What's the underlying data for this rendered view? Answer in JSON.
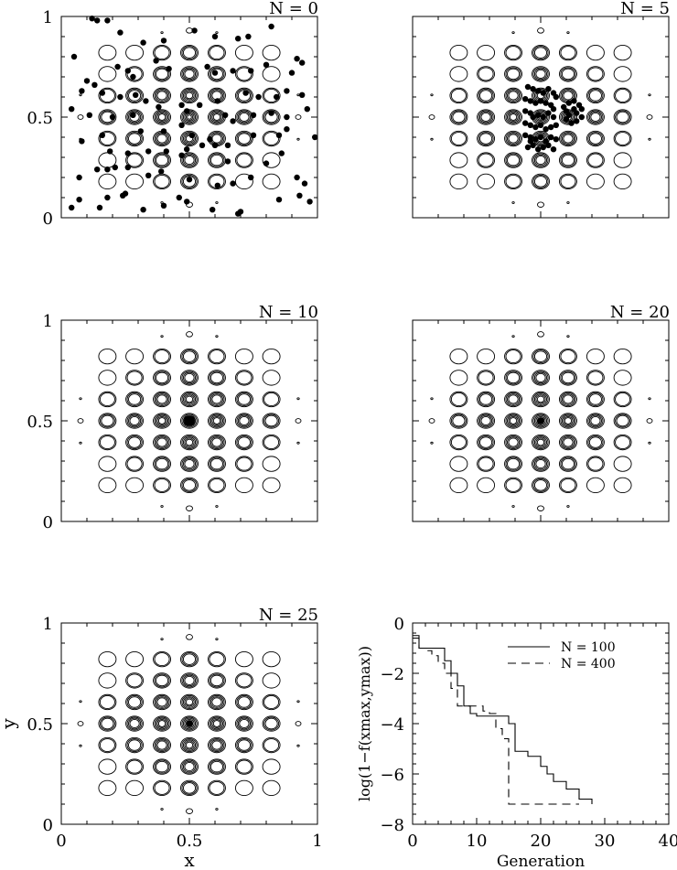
{
  "figure": {
    "panels_label": "N",
    "x_axis_label": "x",
    "y_axis_label": "y"
  },
  "chart_data": [
    {
      "type": "scatter",
      "title": "N = 0",
      "xlim": [
        0,
        1
      ],
      "ylim": [
        0,
        1
      ],
      "yticks": [
        "0",
        "0.5",
        "1"
      ],
      "xticks": [],
      "background": "contour of multimodal test function (7x7 grid of peaks)",
      "points": [
        [
          0.12,
          0.99
        ],
        [
          0.14,
          0.98
        ],
        [
          0.18,
          0.98
        ],
        [
          0.05,
          0.8
        ],
        [
          0.23,
          0.92
        ],
        [
          0.32,
          0.87
        ],
        [
          0.4,
          0.88
        ],
        [
          0.52,
          0.93
        ],
        [
          0.6,
          0.9
        ],
        [
          0.69,
          0.89
        ],
        [
          0.73,
          0.9
        ],
        [
          0.82,
          0.95
        ],
        [
          0.92,
          0.79
        ],
        [
          0.94,
          0.77
        ],
        [
          0.1,
          0.68
        ],
        [
          0.13,
          0.66
        ],
        [
          0.22,
          0.75
        ],
        [
          0.26,
          0.73
        ],
        [
          0.28,
          0.7
        ],
        [
          0.37,
          0.78
        ],
        [
          0.42,
          0.74
        ],
        [
          0.57,
          0.75
        ],
        [
          0.6,
          0.72
        ],
        [
          0.67,
          0.73
        ],
        [
          0.74,
          0.73
        ],
        [
          0.8,
          0.76
        ],
        [
          0.9,
          0.72
        ],
        [
          0.08,
          0.63
        ],
        [
          0.16,
          0.62
        ],
        [
          0.23,
          0.6
        ],
        [
          0.29,
          0.61
        ],
        [
          0.33,
          0.58
        ],
        [
          0.38,
          0.55
        ],
        [
          0.47,
          0.56
        ],
        [
          0.54,
          0.56
        ],
        [
          0.61,
          0.58
        ],
        [
          0.72,
          0.62
        ],
        [
          0.77,
          0.6
        ],
        [
          0.84,
          0.6
        ],
        [
          0.88,
          0.63
        ],
        [
          0.94,
          0.61
        ],
        [
          0.04,
          0.54
        ],
        [
          0.11,
          0.51
        ],
        [
          0.2,
          0.5
        ],
        [
          0.28,
          0.51
        ],
        [
          0.49,
          0.53
        ],
        [
          0.64,
          0.51
        ],
        [
          0.67,
          0.48
        ],
        [
          0.75,
          0.51
        ],
        [
          0.82,
          0.52
        ],
        [
          0.88,
          0.5
        ],
        [
          0.96,
          0.54
        ],
        [
          0.08,
          0.38
        ],
        [
          0.16,
          0.41
        ],
        [
          0.31,
          0.43
        ],
        [
          0.4,
          0.43
        ],
        [
          0.47,
          0.46
        ],
        [
          0.51,
          0.41
        ],
        [
          0.58,
          0.39
        ],
        [
          0.6,
          0.36
        ],
        [
          0.65,
          0.36
        ],
        [
          0.75,
          0.41
        ],
        [
          0.85,
          0.41
        ],
        [
          0.88,
          0.44
        ],
        [
          0.99,
          0.4
        ],
        [
          0.19,
          0.33
        ],
        [
          0.26,
          0.32
        ],
        [
          0.34,
          0.33
        ],
        [
          0.41,
          0.33
        ],
        [
          0.47,
          0.31
        ],
        [
          0.49,
          0.34
        ],
        [
          0.55,
          0.36
        ],
        [
          0.65,
          0.28
        ],
        [
          0.8,
          0.27
        ],
        [
          0.86,
          0.32
        ],
        [
          0.07,
          0.2
        ],
        [
          0.14,
          0.24
        ],
        [
          0.18,
          0.24
        ],
        [
          0.21,
          0.25
        ],
        [
          0.26,
          0.25
        ],
        [
          0.34,
          0.21
        ],
        [
          0.39,
          0.23
        ],
        [
          0.5,
          0.19
        ],
        [
          0.61,
          0.16
        ],
        [
          0.67,
          0.17
        ],
        [
          0.74,
          0.2
        ],
        [
          0.92,
          0.2
        ],
        [
          0.95,
          0.17
        ],
        [
          0.04,
          0.05
        ],
        [
          0.07,
          0.09
        ],
        [
          0.15,
          0.05
        ],
        [
          0.18,
          0.1
        ],
        [
          0.24,
          0.11
        ],
        [
          0.25,
          0.12
        ],
        [
          0.32,
          0.04
        ],
        [
          0.4,
          0.06
        ],
        [
          0.46,
          0.1
        ],
        [
          0.49,
          0.08
        ],
        [
          0.59,
          0.04
        ],
        [
          0.69,
          0.02
        ],
        [
          0.7,
          0.03
        ],
        [
          0.85,
          0.09
        ],
        [
          0.93,
          0.11
        ],
        [
          0.97,
          0.08
        ]
      ]
    },
    {
      "type": "scatter",
      "title": "N = 5",
      "xlim": [
        0,
        1
      ],
      "ylim": [
        0,
        1
      ],
      "xticks": [],
      "yticks": [],
      "background": "contour of multimodal test function (7x7 grid of peaks)",
      "points": [
        [
          0.45,
          0.65
        ],
        [
          0.47,
          0.64
        ],
        [
          0.49,
          0.63
        ],
        [
          0.51,
          0.62
        ],
        [
          0.53,
          0.64
        ],
        [
          0.55,
          0.62
        ],
        [
          0.56,
          0.6
        ],
        [
          0.44,
          0.59
        ],
        [
          0.46,
          0.58
        ],
        [
          0.48,
          0.57
        ],
        [
          0.5,
          0.58
        ],
        [
          0.52,
          0.57
        ],
        [
          0.54,
          0.56
        ],
        [
          0.55,
          0.54
        ],
        [
          0.44,
          0.53
        ],
        [
          0.46,
          0.52
        ],
        [
          0.47,
          0.5
        ],
        [
          0.49,
          0.51
        ],
        [
          0.51,
          0.5
        ],
        [
          0.53,
          0.52
        ],
        [
          0.55,
          0.5
        ],
        [
          0.44,
          0.47
        ],
        [
          0.46,
          0.46
        ],
        [
          0.48,
          0.45
        ],
        [
          0.5,
          0.46
        ],
        [
          0.52,
          0.44
        ],
        [
          0.54,
          0.45
        ],
        [
          0.56,
          0.46
        ],
        [
          0.44,
          0.41
        ],
        [
          0.46,
          0.4
        ],
        [
          0.48,
          0.39
        ],
        [
          0.5,
          0.4
        ],
        [
          0.52,
          0.38
        ],
        [
          0.54,
          0.4
        ],
        [
          0.56,
          0.39
        ],
        [
          0.45,
          0.35
        ],
        [
          0.47,
          0.36
        ],
        [
          0.49,
          0.34
        ],
        [
          0.51,
          0.35
        ],
        [
          0.53,
          0.36
        ],
        [
          0.55,
          0.34
        ],
        [
          0.46,
          0.38
        ],
        [
          0.59,
          0.55
        ],
        [
          0.61,
          0.57
        ],
        [
          0.63,
          0.58
        ],
        [
          0.65,
          0.56
        ],
        [
          0.66,
          0.54
        ],
        [
          0.64,
          0.52
        ],
        [
          0.61,
          0.51
        ],
        [
          0.6,
          0.49
        ],
        [
          0.62,
          0.47
        ],
        [
          0.64,
          0.48
        ],
        [
          0.66,
          0.5
        ],
        [
          0.6,
          0.53
        ],
        [
          0.63,
          0.54
        ]
      ]
    },
    {
      "type": "scatter",
      "title": "N = 10",
      "xlim": [
        0,
        1
      ],
      "ylim": [
        0,
        1
      ],
      "xticks": [],
      "yticks": [
        "0",
        "0.5",
        "1"
      ],
      "background": "contour of multimodal test function (7x7 grid of peaks)",
      "points": [
        [
          0.49,
          0.51
        ],
        [
          0.5,
          0.51
        ],
        [
          0.51,
          0.51
        ],
        [
          0.49,
          0.5
        ],
        [
          0.5,
          0.5
        ],
        [
          0.51,
          0.5
        ],
        [
          0.49,
          0.49
        ],
        [
          0.5,
          0.49
        ],
        [
          0.51,
          0.49
        ],
        [
          0.505,
          0.505
        ],
        [
          0.495,
          0.495
        ]
      ]
    },
    {
      "type": "scatter",
      "title": "N = 20",
      "xlim": [
        0,
        1
      ],
      "ylim": [
        0,
        1
      ],
      "xticks": [],
      "yticks": [],
      "background": "contour of multimodal test function (7x7 grid of peaks)",
      "points": [
        [
          0.5,
          0.5
        ],
        [
          0.503,
          0.502
        ],
        [
          0.497,
          0.498
        ]
      ]
    },
    {
      "type": "scatter",
      "title": "N = 25",
      "xlim": [
        0,
        1
      ],
      "ylim": [
        0,
        1
      ],
      "xticks": [
        "0",
        "0.5",
        "1"
      ],
      "yticks": [
        "0",
        "0.5",
        "1"
      ],
      "xlabel": "x",
      "ylabel": "y",
      "background": "contour of multimodal test function (7x7 grid of peaks)",
      "points": [
        [
          0.5,
          0.5
        ],
        [
          0.502,
          0.501
        ]
      ]
    },
    {
      "type": "line",
      "title": "",
      "xlabel": "Generation",
      "ylabel": "log(1−f(xmax,ymax))",
      "xlim": [
        0,
        40
      ],
      "ylim": [
        -8,
        0
      ],
      "xticks": [
        "0",
        "10",
        "20",
        "30",
        "40"
      ],
      "yticks": [
        "0",
        "−2",
        "−4",
        "−6",
        "−8"
      ],
      "legend_position": "top-right",
      "series": [
        {
          "name": "N = 100",
          "style": "solid",
          "x": [
            0,
            1,
            4,
            5,
            6,
            7,
            8,
            9,
            10,
            11,
            14,
            15,
            16,
            17,
            18,
            19,
            20,
            21,
            22,
            23,
            24,
            25,
            26,
            27,
            28
          ],
          "y": [
            -0.5,
            -1.0,
            -1.0,
            -1.5,
            -2.0,
            -2.5,
            -3.3,
            -3.6,
            -3.7,
            -3.7,
            -3.7,
            -4.0,
            -5.1,
            -5.1,
            -5.3,
            -5.3,
            -5.7,
            -6.0,
            -6.3,
            -6.3,
            -6.6,
            -6.6,
            -7.0,
            -7.0,
            -7.2
          ]
        },
        {
          "name": "N = 400",
          "style": "dashed",
          "x": [
            0,
            1,
            2,
            3,
            4,
            5,
            6,
            7,
            8,
            9,
            10,
            11,
            12,
            13,
            14,
            15,
            16,
            20,
            25,
            26
          ],
          "y": [
            -0.6,
            -1.0,
            -1.1,
            -1.3,
            -1.6,
            -2.0,
            -2.6,
            -3.3,
            -3.3,
            -3.3,
            -3.3,
            -3.5,
            -3.6,
            -4.2,
            -4.6,
            -7.2,
            -7.2,
            -7.2,
            -7.2,
            -7.2
          ]
        }
      ]
    }
  ]
}
